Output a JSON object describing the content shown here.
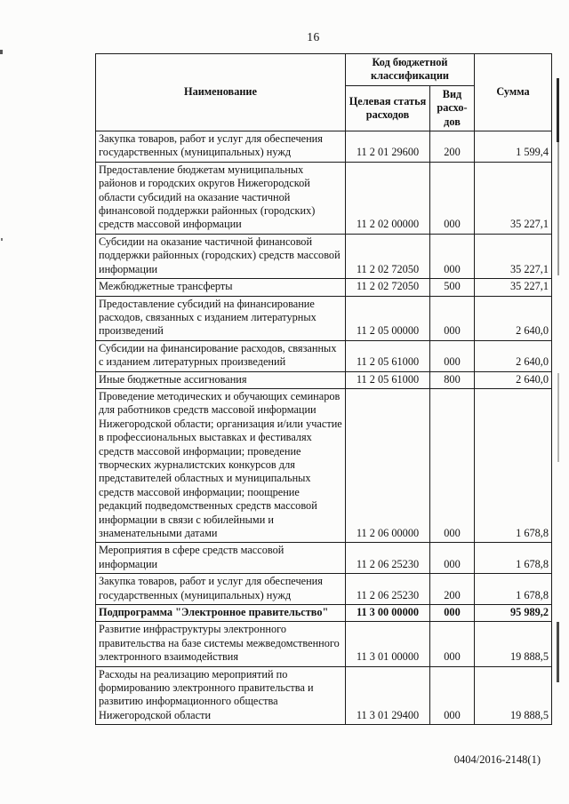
{
  "page": {
    "number": "16",
    "footer_code": "0404/2016-2148(1)"
  },
  "table": {
    "headers": {
      "name": "Наименование",
      "kbk_group": "Код бюджетной классификации",
      "target_article": "Целевая статья расходов",
      "expense_type": "Вид расхо­дов",
      "sum": "Сумма"
    },
    "rows": [
      {
        "name": "Закупка товаров, работ и услуг для обеспечения государственных (муниципальных) нужд",
        "code": "11 2 01 29600",
        "vid": "200",
        "sum": "1 599,4",
        "bold": false
      },
      {
        "name": "Предоставление бюджетам муниципальных районов и городских округов Нижегородской области субсидий на оказание частичной финансовой поддержки районных (городских) средств массовой информации",
        "code": "11 2 02 00000",
        "vid": "000",
        "sum": "35 227,1",
        "bold": false
      },
      {
        "name": "Субсидии на оказание частичной финансовой поддержки районных (городских) средств массовой информации",
        "code": "11 2 02 72050",
        "vid": "000",
        "sum": "35 227,1",
        "bold": false
      },
      {
        "name": "Межбюджетные трансферты",
        "code": "11 2 02 72050",
        "vid": "500",
        "sum": "35 227,1",
        "bold": false
      },
      {
        "name": "Предоставление субсидий на финансирование расходов, связанных с изданием литературных произведений",
        "code": "11 2 05 00000",
        "vid": "000",
        "sum": "2 640,0",
        "bold": false
      },
      {
        "name": "Субсидии на финансирование расходов, связанных с изданием литературных произведений",
        "code": "11 2 05 61000",
        "vid": "000",
        "sum": "2 640,0",
        "bold": false
      },
      {
        "name": "Иные бюджетные ассигнования",
        "code": "11 2 05 61000",
        "vid": "800",
        "sum": "2 640,0",
        "bold": false
      },
      {
        "name": "Проведение методических и обучающих семинаров для работников средств массовой информации Нижегородской области; организация и/или участие в профессиональных выставках и фестивалях средств массовой информации; проведение творческих журналистских конкурсов для представителей областных и муниципальных средств массовой информации; поощрение редакций подведомственных средств массовой информации в связи с юбилейными и знаменательными датами",
        "code": "11 2 06 00000",
        "vid": "000",
        "sum": "1 678,8",
        "bold": false
      },
      {
        "name": "Мероприятия в сфере средств массовой информации",
        "code": "11 2 06 25230",
        "vid": "000",
        "sum": "1 678,8",
        "bold": false
      },
      {
        "name": "Закупка товаров, работ и услуг для обеспечения государственных (муниципальных) нужд",
        "code": "11 2 06 25230",
        "vid": "200",
        "sum": "1 678,8",
        "bold": false
      },
      {
        "name": "Подпрограмма \"Электронное правительство\"",
        "code": "11 3 00 00000",
        "vid": "000",
        "sum": "95 989,2",
        "bold": true
      },
      {
        "name": "Развитие инфраструктуры электронного правительства на базе системы межведомственного электронного взаимодействия",
        "code": "11 3 01 00000",
        "vid": "000",
        "sum": "19 888,5",
        "bold": false
      },
      {
        "name": "Расходы на реализацию мероприятий по формированию электронного правительства и развитию информационного общества Нижегородской области",
        "code": "11 3 01 29400",
        "vid": "000",
        "sum": "19 888,5",
        "bold": false
      }
    ]
  }
}
